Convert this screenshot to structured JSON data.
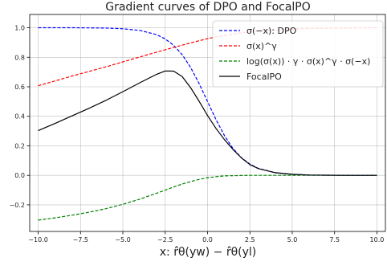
{
  "chart_data": {
    "type": "line",
    "title": "Gradient curves of DPO and FocalPO",
    "xlabel": "x: r̂θ(yw) − r̂θ(yl)",
    "ylabel": "",
    "xlim": [
      -10.5,
      10.5
    ],
    "ylim": [
      -0.38,
      1.09
    ],
    "grid": true,
    "legend_position": "top-right",
    "xticks": [
      "−10.0",
      "−7.5",
      "−5.0",
      "−2.5",
      "0.0",
      "2.5",
      "5.0",
      "7.5",
      "10.0"
    ],
    "yticks": [
      "−0.2",
      "0.0",
      "0.2",
      "0.4",
      "0.6",
      "0.8",
      "1.0"
    ],
    "x": [
      -10,
      -9,
      -8,
      -7,
      -6,
      -5,
      -4,
      -3,
      -2.5,
      -2,
      -1.5,
      -1,
      -0.5,
      0,
      0.5,
      1,
      1.5,
      2,
      2.5,
      3,
      4,
      5,
      6,
      7,
      8,
      9,
      10
    ],
    "series": [
      {
        "name": "σ(−x): DPO",
        "color": "#0000ff",
        "style": "dashed",
        "values": [
          1.0,
          1.0,
          1.0,
          0.999,
          0.998,
          0.993,
          0.982,
          0.953,
          0.924,
          0.881,
          0.818,
          0.731,
          0.622,
          0.5,
          0.378,
          0.269,
          0.182,
          0.119,
          0.076,
          0.047,
          0.018,
          0.007,
          0.002,
          0.001,
          0.0,
          0.0,
          0.0
        ]
      },
      {
        "name": "σ(x)^γ",
        "color": "#ff0000",
        "style": "dashed",
        "values": [
          0.607,
          0.64,
          0.673,
          0.704,
          0.735,
          0.769,
          0.802,
          0.835,
          0.851,
          0.867,
          0.882,
          0.897,
          0.912,
          0.926,
          0.938,
          0.948,
          0.958,
          0.966,
          0.973,
          0.978,
          0.986,
          0.992,
          0.995,
          0.997,
          0.998,
          0.999,
          1.0
        ]
      },
      {
        "name": "log(σ(x)) · γ · σ(x)^γ · σ(−x)",
        "color": "#008000",
        "style": "dashed",
        "values": [
          -0.303,
          -0.288,
          -0.27,
          -0.25,
          -0.226,
          -0.196,
          -0.161,
          -0.121,
          -0.1,
          -0.079,
          -0.059,
          -0.042,
          -0.027,
          -0.016,
          -0.009,
          -0.004,
          -0.002,
          -0.001,
          0.0,
          0.0,
          0.0,
          0.0,
          0.0,
          0.0,
          0.0,
          0.0,
          0.0
        ]
      },
      {
        "name": "FocalPO",
        "color": "#000000",
        "style": "solid",
        "values": [
          0.303,
          0.352,
          0.403,
          0.454,
          0.508,
          0.567,
          0.627,
          0.685,
          0.707,
          0.706,
          0.669,
          0.594,
          0.502,
          0.405,
          0.318,
          0.242,
          0.176,
          0.118,
          0.073,
          0.046,
          0.018,
          0.007,
          0.002,
          0.001,
          0.0,
          0.0,
          0.0
        ]
      }
    ]
  }
}
